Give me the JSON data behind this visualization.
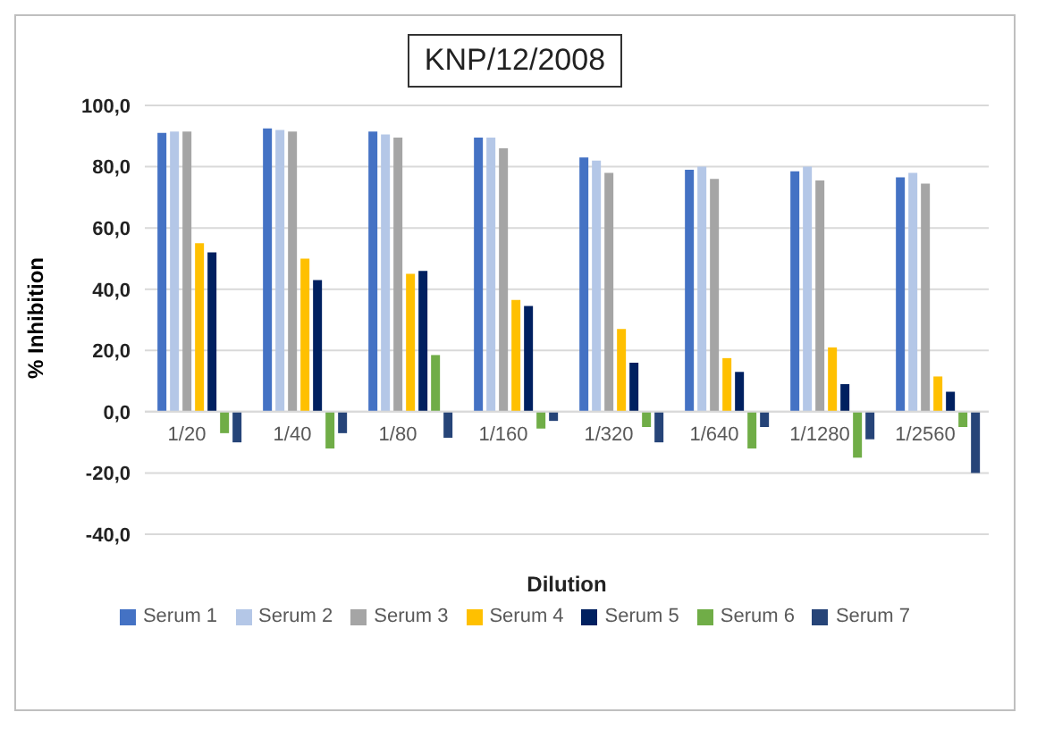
{
  "chart_data": {
    "type": "bar",
    "title": "KNP/12/2008",
    "xlabel": "Dilution",
    "ylabel": "% Inhibition",
    "categories": [
      "1/20",
      "1/40",
      "1/80",
      "1/160",
      "1/320",
      "1/640",
      "1/1280",
      "1/2560"
    ],
    "series": [
      {
        "name": "Serum 1",
        "color": "#4472c4",
        "values": [
          91,
          92.5,
          91.5,
          89.5,
          83,
          79,
          78.5,
          76.5
        ]
      },
      {
        "name": "Serum 2",
        "color": "#b4c7e7",
        "values": [
          91.5,
          92,
          90.5,
          89.5,
          82,
          80,
          80,
          78
        ]
      },
      {
        "name": "Serum 3",
        "color": "#a5a5a5",
        "values": [
          91.5,
          91.5,
          89.5,
          86,
          78,
          76,
          75.5,
          74.5
        ]
      },
      {
        "name": "Serum 4",
        "color": "#ffc000",
        "values": [
          55,
          50,
          45,
          36.5,
          27,
          17.5,
          21,
          11.5
        ]
      },
      {
        "name": "Serum 5",
        "color": "#002060",
        "values": [
          52,
          43,
          46,
          34.5,
          16,
          13,
          9,
          6.5
        ]
      },
      {
        "name": "Serum 6",
        "color": "#70ad47",
        "values": [
          -7,
          -12,
          18.5,
          -5.5,
          -5,
          -12,
          -15,
          -5
        ]
      },
      {
        "name": "Serum 7",
        "color": "#264478",
        "values": [
          -10,
          -7,
          -8.5,
          -3,
          -10,
          -5,
          -9,
          -20
        ]
      }
    ],
    "ylim": [
      -40,
      100
    ],
    "yticks": [
      {
        "value": -40,
        "label": "-40,0"
      },
      {
        "value": -20,
        "label": "-20,0"
      },
      {
        "value": 0,
        "label": "0,0"
      },
      {
        "value": 20,
        "label": "20,0"
      },
      {
        "value": 40,
        "label": "40,0"
      },
      {
        "value": 60,
        "label": "60,0"
      },
      {
        "value": 80,
        "label": "80,0"
      },
      {
        "value": 100,
        "label": "100,0"
      }
    ],
    "grid": "y",
    "legend": "bottom"
  }
}
